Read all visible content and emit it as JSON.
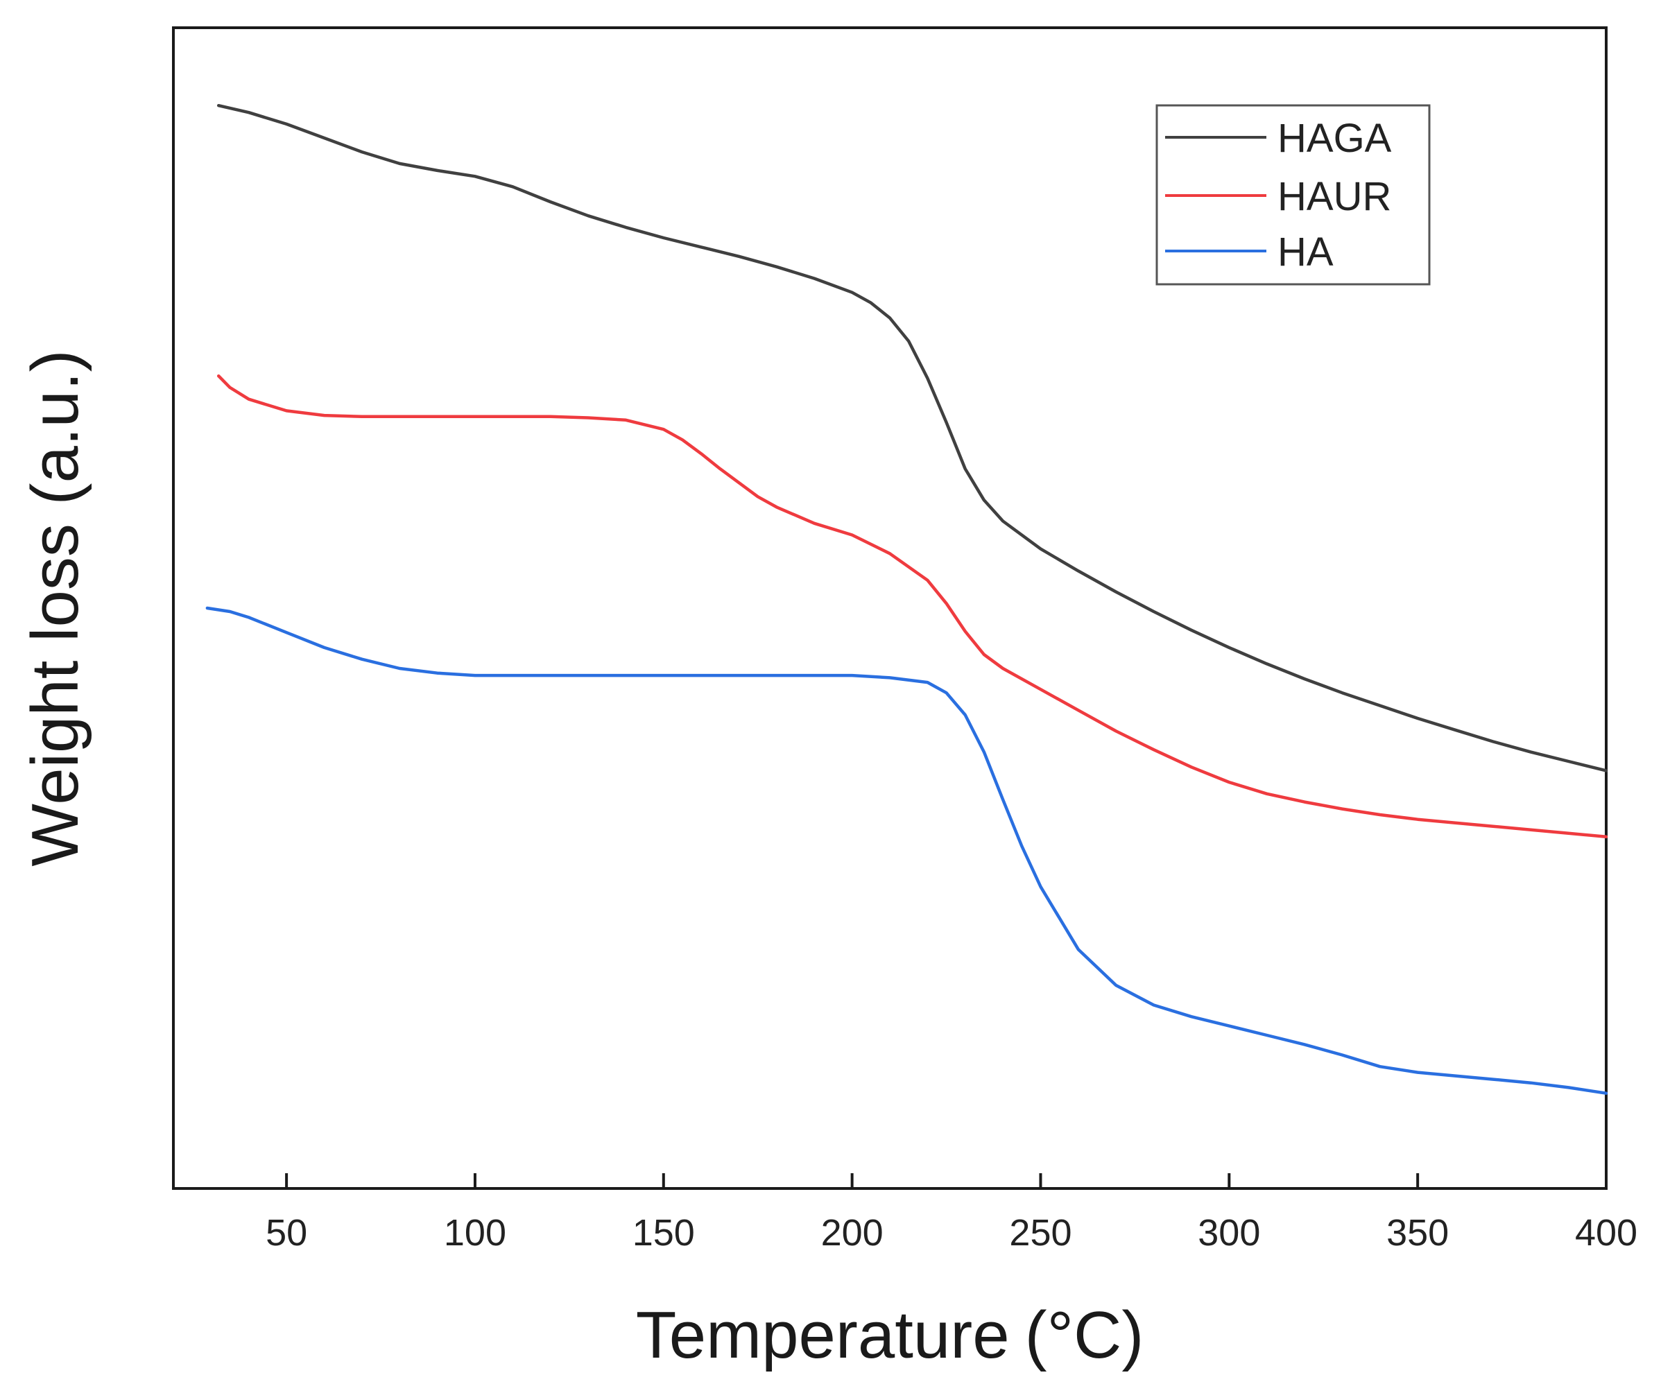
{
  "chart_data": {
    "type": "line",
    "title": "",
    "xlabel": "Temperature",
    "xlabel_unit": "(°C)",
    "ylabel": "Weight loss (a.u.)",
    "xlim": [
      20,
      400
    ],
    "ylim": [
      0,
      100
    ],
    "xticks": [
      50,
      100,
      150,
      200,
      250,
      300,
      350,
      400
    ],
    "yticks": [],
    "grid": false,
    "legend_position": "top-right",
    "series": [
      {
        "name": "HAGA",
        "color": "#404040",
        "x": [
          32,
          40,
          50,
          60,
          70,
          80,
          90,
          100,
          110,
          120,
          130,
          140,
          150,
          160,
          170,
          180,
          190,
          200,
          205,
          210,
          215,
          220,
          225,
          230,
          235,
          240,
          250,
          260,
          270,
          280,
          290,
          300,
          310,
          320,
          330,
          340,
          350,
          360,
          370,
          380,
          390,
          400
        ],
        "y": [
          93.3,
          92.7,
          91.7,
          90.5,
          89.3,
          88.3,
          87.7,
          87.2,
          86.3,
          85.0,
          83.8,
          82.8,
          81.9,
          81.1,
          80.3,
          79.4,
          78.4,
          77.2,
          76.3,
          75.0,
          73.0,
          69.8,
          66.0,
          62.0,
          59.3,
          57.5,
          55.1,
          53.2,
          51.4,
          49.7,
          48.1,
          46.6,
          45.2,
          43.9,
          42.7,
          41.6,
          40.5,
          39.5,
          38.5,
          37.6,
          36.8,
          36.0
        ]
      },
      {
        "name": "HAUR",
        "color": "#ef3b3f",
        "x": [
          32,
          35,
          40,
          50,
          60,
          70,
          80,
          90,
          100,
          110,
          120,
          130,
          140,
          150,
          155,
          160,
          165,
          170,
          175,
          180,
          185,
          190,
          200,
          210,
          220,
          225,
          230,
          235,
          240,
          250,
          260,
          270,
          280,
          290,
          300,
          310,
          320,
          330,
          340,
          350,
          360,
          370,
          380,
          390,
          400
        ],
        "y": [
          70.0,
          69.0,
          68.0,
          67.0,
          66.6,
          66.5,
          66.5,
          66.5,
          66.5,
          66.5,
          66.5,
          66.4,
          66.2,
          65.4,
          64.5,
          63.3,
          62.0,
          60.8,
          59.6,
          58.7,
          58.0,
          57.3,
          56.3,
          54.7,
          52.4,
          50.4,
          48.0,
          46.0,
          44.8,
          43.0,
          41.2,
          39.4,
          37.8,
          36.3,
          35.0,
          34.0,
          33.3,
          32.7,
          32.2,
          31.8,
          31.5,
          31.2,
          30.9,
          30.6,
          30.3
        ]
      },
      {
        "name": "HA",
        "color": "#2a6fe0",
        "x": [
          29,
          35,
          40,
          50,
          60,
          70,
          80,
          90,
          100,
          110,
          120,
          130,
          140,
          150,
          160,
          170,
          180,
          190,
          200,
          210,
          220,
          225,
          230,
          235,
          240,
          245,
          250,
          260,
          270,
          280,
          290,
          300,
          310,
          320,
          330,
          340,
          350,
          360,
          370,
          380,
          390,
          400
        ],
        "y": [
          50.0,
          49.7,
          49.2,
          47.9,
          46.6,
          45.6,
          44.8,
          44.4,
          44.2,
          44.2,
          44.2,
          44.2,
          44.2,
          44.2,
          44.2,
          44.2,
          44.2,
          44.2,
          44.2,
          44.0,
          43.6,
          42.7,
          40.8,
          37.6,
          33.5,
          29.5,
          26.0,
          20.6,
          17.5,
          15.8,
          14.8,
          14.0,
          13.2,
          12.4,
          11.5,
          10.5,
          10.0,
          9.7,
          9.4,
          9.1,
          8.7,
          8.2
        ]
      }
    ]
  }
}
